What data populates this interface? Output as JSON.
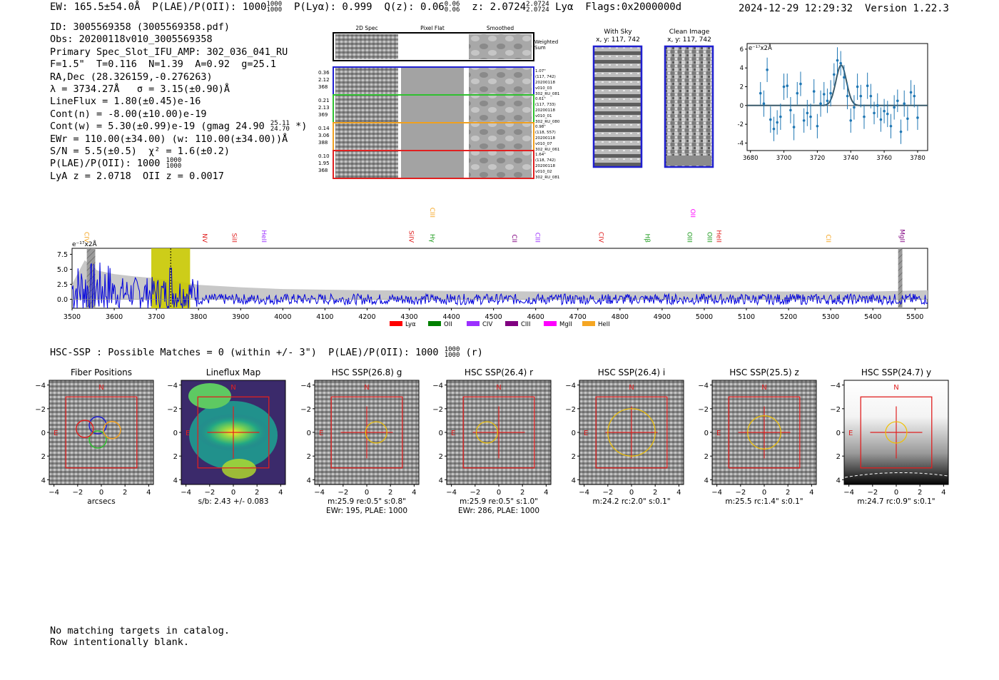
{
  "header": {
    "ew": "EW: 165.5±54.0Å",
    "plae": "P(LAE)/P(OII): 1000",
    "plae_hi": "1000",
    "plae_lo": "1000",
    "plya": "P(Lyα): 0.999",
    "qz": "Q(z): 0.06",
    "qz_hi": "0.06",
    "qz_lo": "0.06",
    "z": "z: 2.0724",
    "z_hi": "2.0724",
    "z_lo": "2.0724",
    "line": "Lyα",
    "flags": "Flags:0x2000000d",
    "timestamp": "2024-12-29 12:29:32",
    "version": "Version 1.22.3"
  },
  "info": {
    "id": "ID: 3005569358 (3005569358.pdf)",
    "obs": "Obs: 20200118v010_3005569358",
    "primary": "Primary Spec_Slot_IFU_AMP: 302_036_041_RU",
    "params": "F=1.5\"  T=0.116  N=1.39  A=0.92  g=25.1",
    "radec": "RA,Dec (28.326159,-0.276263)",
    "lambda": "λ = 3734.27Å   σ = 3.15(±0.90)Å",
    "lineflux": "LineFlux = 1.80(±0.45)e-16",
    "contn": "Cont(n) = -8.00(±10.00)e-19",
    "contw": "Cont(w) = 5.30(±0.99)e-19 (gmag 24.90",
    "gmag_hi": "25.11",
    "gmag_lo": "24.70",
    "contw_end": " *)",
    "ewr": "EWr = 110.00(±34.00) (w: 110.00(±34.00))Å",
    "sn": "S/N = 5.5(±0.5)  χ² = 1.6(±0.2)",
    "plae": "P(LAE)/P(OII): 1000",
    "plae_hi": "1000",
    "plae_lo": "1000",
    "lya": "LyA z = 2.0718  OII z = 0.0017"
  },
  "cutouts": {
    "col_headers": [
      "2D Spec",
      "Pixel Flat",
      "Smoothed"
    ],
    "weighted_sum": [
      "Weighted",
      "Sum"
    ],
    "rows": [
      {
        "left": [
          "0.36",
          "2.12",
          "368"
        ],
        "right": [
          "1.07\"",
          "(117, 742)",
          "20200118",
          "v010_03",
          "302_RU_081"
        ],
        "color": "#1f1fd0"
      },
      {
        "left": [
          "0.21",
          "2.13",
          "369"
        ],
        "right": [
          "0.61\"",
          "(117, 733)",
          "20200118",
          "v010_01",
          "302_RU_080"
        ],
        "color": "#2fc02f"
      },
      {
        "left": [
          "0.14",
          "3.06",
          "388"
        ],
        "right": [
          "0.98\"",
          "(118, 557)",
          "20200118",
          "v010_07",
          "302_RU_061"
        ],
        "color": "#f0a020"
      },
      {
        "left": [
          "0.10",
          "1.95",
          "368"
        ],
        "right": [
          "1.64\"",
          "(118, 742)",
          "20200118",
          "v010_02",
          "302_RU_081"
        ],
        "color": "#e02020"
      }
    ],
    "with_sky": [
      "With Sky",
      "x, y: 117, 742"
    ],
    "clean_image": [
      "Clean Image",
      "x, y: 117, 742"
    ]
  },
  "zoom_plot": {
    "unit": "e⁻¹⁷x2Å",
    "xticks": [
      "3680",
      "3700",
      "3720",
      "3740",
      "3760",
      "3780"
    ],
    "yticks": [
      "6",
      "4",
      "2",
      "0",
      "-2",
      "-4"
    ]
  },
  "chart_data": [
    {
      "type": "scatter",
      "title": "",
      "xlabel": "",
      "ylabel": "e⁻¹⁷x2Å",
      "xlim": [
        3678,
        3786
      ],
      "ylim": [
        -4.8,
        6.6
      ],
      "x": [
        3686,
        3688,
        3690,
        3692,
        3694,
        3696,
        3698,
        3700,
        3702,
        3704,
        3706,
        3708,
        3710,
        3712,
        3714,
        3716,
        3718,
        3720,
        3722,
        3724,
        3726,
        3728,
        3730,
        3732,
        3734,
        3736,
        3738,
        3740,
        3742,
        3744,
        3746,
        3748,
        3750,
        3752,
        3754,
        3756,
        3758,
        3760,
        3762,
        3764,
        3766,
        3768,
        3770,
        3772,
        3774,
        3776,
        3778,
        3780
      ],
      "y": [
        1.3,
        0.2,
        3.8,
        -1.5,
        -2.5,
        -1.8,
        -1.2,
        2.0,
        2.1,
        -0.5,
        -2.3,
        1.3,
        2.3,
        -1.6,
        -0.8,
        -1.2,
        1.5,
        -2.2,
        0.2,
        1.2,
        0.5,
        1.3,
        3.3,
        4.8,
        4.5,
        3.0,
        1.0,
        -1.6,
        -0.2,
        2.0,
        1.0,
        -1.2,
        2.1,
        1.0,
        -0.8,
        0.0,
        -1.5,
        -0.6,
        -0.9,
        -2.2,
        -0.2,
        0.5,
        -2.8,
        0.2,
        -1.4,
        1.4,
        1.0,
        -1.3
      ],
      "yerr": [
        1.2,
        1.4,
        1.3,
        1.4,
        1.3,
        1.3,
        1.4,
        1.4,
        1.3,
        1.4,
        1.4,
        1.2,
        1.3,
        1.3,
        1.4,
        1.4,
        1.3,
        1.3,
        1.4,
        1.3,
        1.3,
        1.4,
        1.2,
        1.4,
        1.3,
        1.3,
        1.4,
        1.3,
        1.3,
        1.4,
        1.2,
        1.3,
        1.4,
        1.3,
        1.2,
        1.3,
        1.3,
        1.3,
        1.4,
        1.3,
        1.3,
        1.2,
        1.3,
        1.4,
        1.3,
        1.3,
        1.2,
        1.3
      ],
      "fit": {
        "center": 3734.27,
        "sigma": 3.15,
        "amplitude": 4.3
      }
    },
    {
      "type": "line",
      "title": "",
      "xlabel": "",
      "ylabel": "e⁻¹⁷x2Å",
      "xlim": [
        3500,
        5530
      ],
      "ylim": [
        -1.5,
        8.5
      ],
      "xticks": [
        3500,
        3600,
        3700,
        3800,
        3900,
        4000,
        4100,
        4200,
        4300,
        4400,
        4500,
        4600,
        4700,
        4800,
        4900,
        5000,
        5100,
        5200,
        5300,
        5400,
        5500
      ],
      "yticks": [
        "7.5",
        "5.0",
        "2.5",
        "0.0"
      ],
      "highlight_range": [
        3688,
        3780
      ],
      "marker_line": 3734,
      "masked_ranges": [
        [
          3535,
          3555
        ],
        [
          5460,
          5470
        ]
      ],
      "error_envelope": [
        [
          3500,
          2.5
        ],
        [
          3530,
          6.5
        ],
        [
          3560,
          4.8
        ],
        [
          3600,
          4.2
        ],
        [
          3650,
          3.8
        ],
        [
          3700,
          3.5
        ],
        [
          3750,
          3.0
        ],
        [
          3800,
          2.4
        ],
        [
          3900,
          2.0
        ],
        [
          4000,
          1.7
        ],
        [
          4200,
          1.5
        ],
        [
          4400,
          1.4
        ],
        [
          4600,
          1.3
        ],
        [
          4800,
          1.3
        ],
        [
          5000,
          1.3
        ],
        [
          5200,
          1.3
        ],
        [
          5400,
          1.3
        ],
        [
          5530,
          1.5
        ]
      ],
      "lines": [
        {
          "name": "CIV",
          "x": 3530,
          "color": "#f5a623",
          "row": 1
        },
        {
          "name": "NV",
          "x": 3810,
          "color": "#e02020",
          "row": 1
        },
        {
          "name": "SiII",
          "x": 3880,
          "color": "#e02020",
          "row": 1
        },
        {
          "name": "HeII",
          "x": 3950,
          "color": "#9b30ff",
          "row": 1
        },
        {
          "name": "SiIV",
          "x": 4300,
          "color": "#e02020",
          "row": 1
        },
        {
          "name": "CIII",
          "x": 4350,
          "color": "#f5a623",
          "row": 0
        },
        {
          "name": "Hγ",
          "x": 4350,
          "color": "#1a9a1a",
          "row": 1
        },
        {
          "name": "CII",
          "x": 4545,
          "color": "#800080",
          "row": 1
        },
        {
          "name": "CIII",
          "x": 4600,
          "color": "#9b30ff",
          "row": 1
        },
        {
          "name": "CIV",
          "x": 4750,
          "color": "#e02020",
          "row": 1
        },
        {
          "name": "Hβ",
          "x": 4860,
          "color": "#1a9a1a",
          "row": 1
        },
        {
          "name": "OII",
          "x": 4968,
          "color": "#ff00ff",
          "row": 0
        },
        {
          "name": "OIII",
          "x": 4960,
          "color": "#1a9a1a",
          "row": 1
        },
        {
          "name": "OIII",
          "x": 5008,
          "color": "#1a9a1a",
          "row": 1
        },
        {
          "name": "HeII",
          "x": 5030,
          "color": "#e02020",
          "row": 1
        },
        {
          "name": "CII",
          "x": 5290,
          "color": "#f5a623",
          "row": 1
        },
        {
          "name": "MgII",
          "x": 5465,
          "color": "#800080",
          "row": 1
        }
      ],
      "legend": [
        {
          "name": "Lyα",
          "color": "#ff0000"
        },
        {
          "name": "OII",
          "color": "#008000"
        },
        {
          "name": "CIV",
          "color": "#9b30ff"
        },
        {
          "name": "CIII",
          "color": "#800080"
        },
        {
          "name": "MgII",
          "color": "#ff00ff"
        },
        {
          "name": "HeII",
          "color": "#f5a623"
        }
      ]
    }
  ],
  "hsc": {
    "line": "HSC-SSP : Possible Matches = 0 (within +/- 3\")  P(LAE)/P(OII): 1000",
    "frac_hi": "1000",
    "frac_lo": "1000",
    "line_end": " (r)",
    "tick_labels": [
      "−4",
      "−2",
      "0",
      "2",
      "4"
    ],
    "ytick_labels": [
      "4",
      "2",
      "0",
      "−2",
      "−4"
    ],
    "north": "N",
    "east": "E",
    "panels": [
      {
        "title": "Fiber Positions",
        "lines": [
          "arcsecs"
        ],
        "kind": "fiber"
      },
      {
        "title": "Lineflux Map",
        "lines": [
          "s/b: 2.43 +/- 0.083"
        ],
        "kind": "flux"
      },
      {
        "title": "HSC SSP(26.8) g",
        "lines": [
          "m:25.9  re:0.5\"  s:0.8\"",
          "EWr: 195, PLAE: 1000"
        ],
        "kind": "noise",
        "circle_r": 0.9,
        "circle_dx": 0.8
      },
      {
        "title": "HSC SSP(26.4) r",
        "lines": [
          "m:25.9  re:0.5\"  s:1.0\"",
          "EWr: 286, PLAE: 1000"
        ],
        "kind": "noise",
        "circle_r": 0.9,
        "circle_dx": -1.0
      },
      {
        "title": "HSC SSP(26.4) i",
        "lines": [
          "m:24.2 rc:2.0\"  s:0.1\""
        ],
        "kind": "noise",
        "circle_r": 2.0,
        "circle_dx": 0
      },
      {
        "title": "HSC SSP(25.5) z",
        "lines": [
          "m:25.5 rc:1.4\"  s:0.1\""
        ],
        "kind": "noise",
        "circle_r": 1.4,
        "circle_dx": 0
      },
      {
        "title": "HSC SSP(24.7) y",
        "lines": [
          "m:24.7 rc:0.9\"  s:0.1\""
        ],
        "kind": "gradient",
        "circle_r": 0.9,
        "circle_dx": 0
      }
    ]
  },
  "footer": {
    "line1": "No matching targets in catalog.",
    "line2": "Row intentionally blank."
  }
}
